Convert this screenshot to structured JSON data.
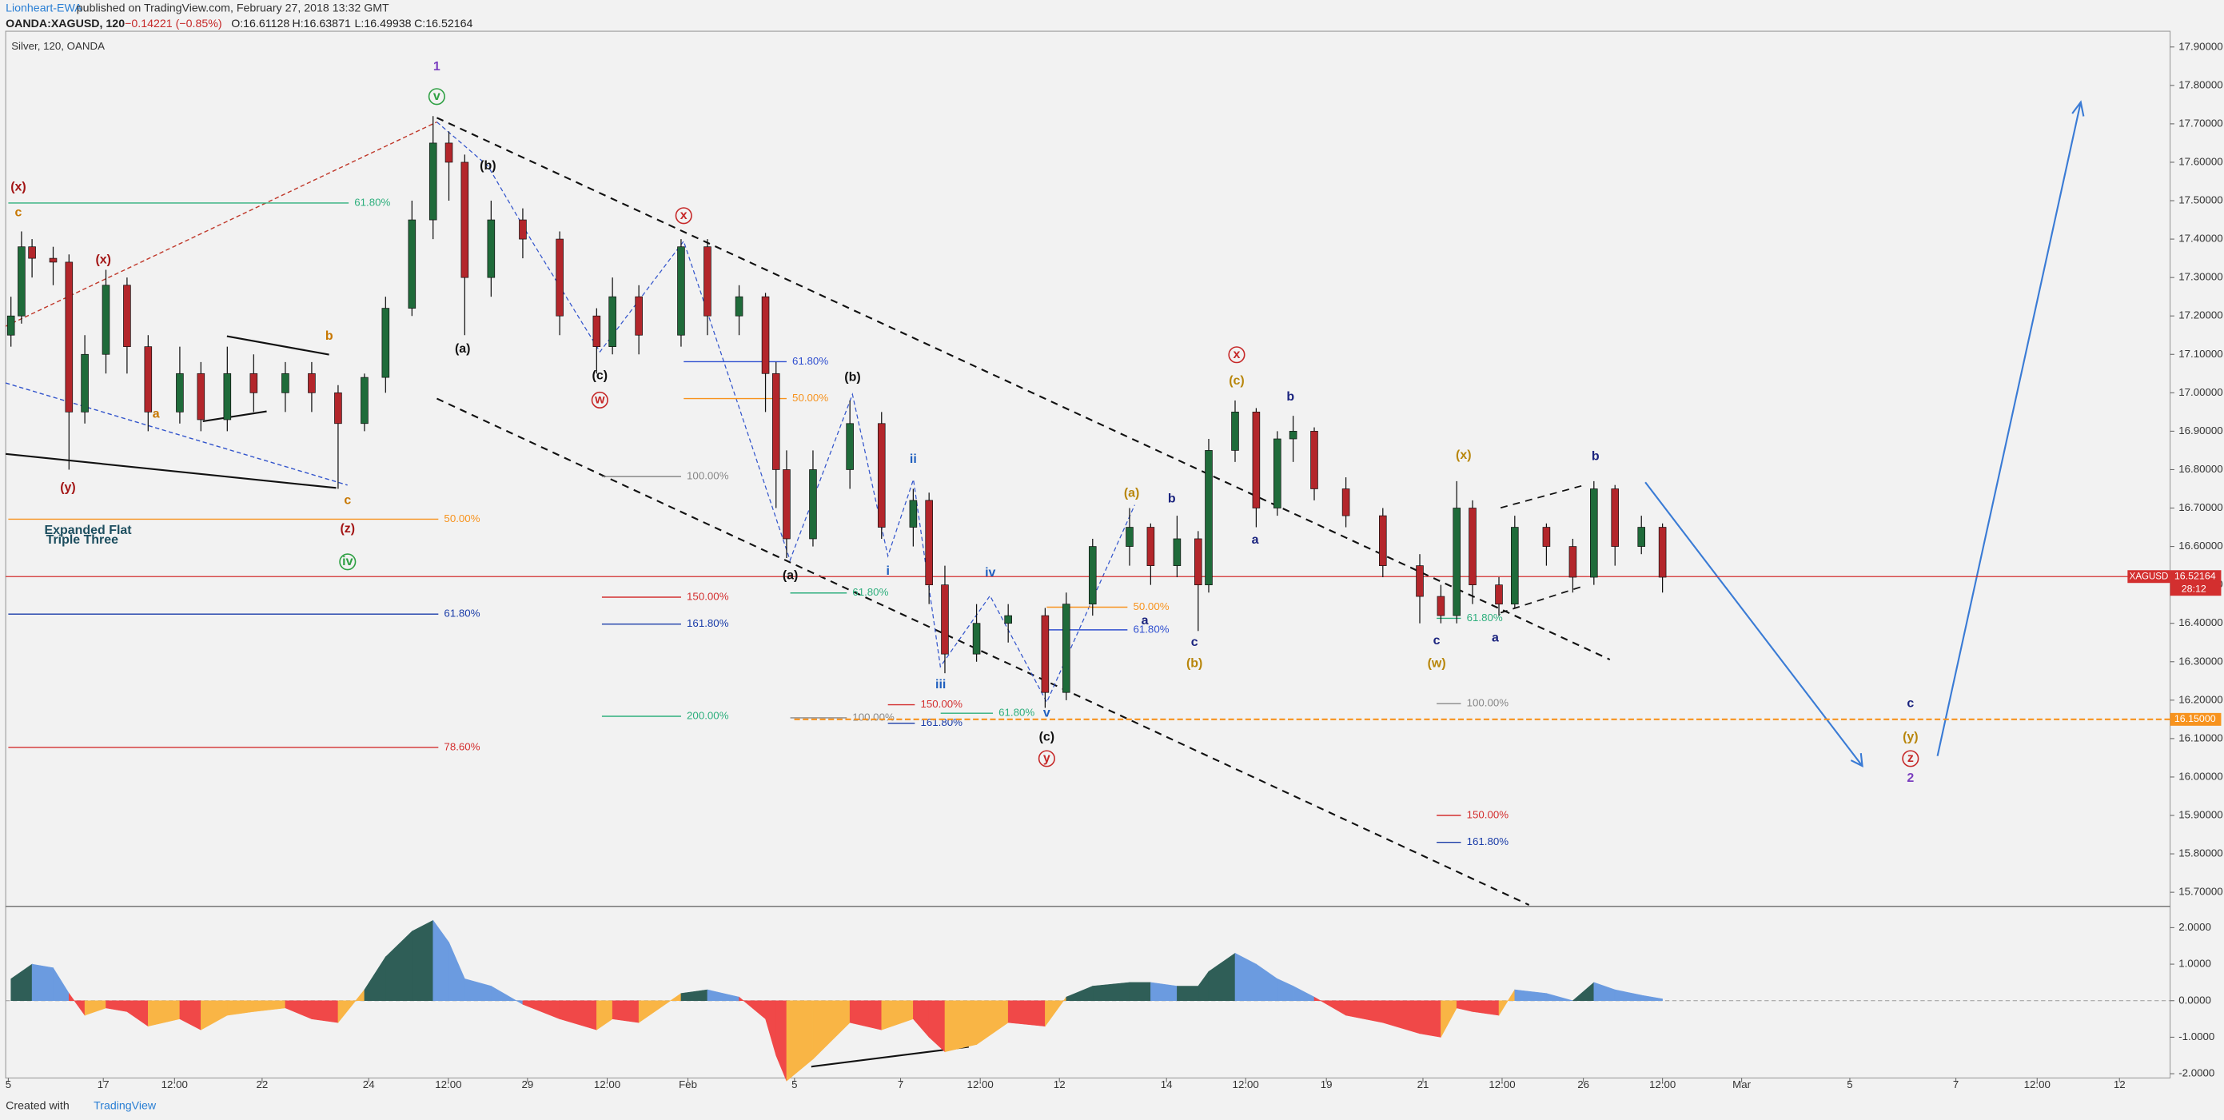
{
  "header": {
    "author": "Lionheart-EWA",
    "published": "published on TradingView.com, February 27, 2018 13:32 GMT",
    "symbol": "OANDA:XAGUSD, 120",
    "change": "−0.14221 (−0.85%)",
    "open": "O:16.61128",
    "high": "H:16.63871",
    "low": "L:16.49938",
    "close": "C:16.52164"
  },
  "chart_data": {
    "type": "candlestick",
    "legend": "Silver, 120, OANDA",
    "x": [
      0.1,
      0.3,
      0.5,
      0.9,
      1.2,
      1.5,
      1.9,
      2.3,
      2.7,
      3.3,
      3.7,
      4.2,
      4.7,
      5.3,
      5.8,
      6.3,
      6.8,
      7.2,
      7.7,
      8.1,
      8.4,
      8.7,
      9.2,
      9.8,
      10.5,
      11.2,
      11.5,
      12.0,
      12.8,
      13.3,
      13.9,
      14.4,
      14.6,
      14.8,
      15.3,
      16.0,
      16.6,
      17.2,
      17.5,
      17.8,
      18.4,
      19.0,
      19.7,
      20.1,
      20.6,
      21.3,
      21.7,
      22.2,
      22.6,
      22.8,
      23.3,
      23.7,
      24.1,
      24.4,
      24.8,
      25.4,
      26.1,
      26.8,
      27.2,
      27.5,
      27.8,
      28.3,
      28.6,
      29.2,
      29.7,
      30.1,
      30.5,
      31.0,
      31.4
    ],
    "open": [
      17.15,
      17.2,
      17.38,
      17.35,
      17.34,
      16.95,
      17.1,
      17.28,
      17.12,
      16.95,
      17.05,
      16.93,
      17.05,
      17.0,
      17.05,
      17.0,
      16.92,
      17.04,
      17.22,
      17.45,
      17.65,
      17.6,
      17.3,
      17.45,
      17.4,
      17.2,
      17.12,
      17.25,
      17.15,
      17.38,
      17.2,
      17.25,
      17.05,
      16.8,
      16.62,
      16.8,
      16.92,
      16.65,
      16.72,
      16.5,
      16.32,
      16.4,
      16.42,
      16.22,
      16.45,
      16.6,
      16.65,
      16.55,
      16.62,
      16.5,
      16.85,
      16.95,
      16.7,
      16.88,
      16.9,
      16.75,
      16.68,
      16.55,
      16.47,
      16.42,
      16.7,
      16.5,
      16.45,
      16.65,
      16.6,
      16.52,
      16.75,
      16.6,
      16.65
    ],
    "high": [
      17.25,
      17.42,
      17.4,
      17.38,
      17.36,
      17.15,
      17.32,
      17.3,
      17.15,
      17.12,
      17.08,
      17.12,
      17.1,
      17.08,
      17.08,
      17.02,
      17.05,
      17.25,
      17.5,
      17.72,
      17.68,
      17.62,
      17.5,
      17.48,
      17.42,
      17.22,
      17.3,
      17.28,
      17.4,
      17.4,
      17.28,
      17.26,
      17.08,
      16.85,
      16.85,
      16.98,
      16.95,
      16.75,
      16.74,
      16.55,
      16.45,
      16.45,
      16.44,
      16.48,
      16.62,
      16.7,
      16.66,
      16.68,
      16.64,
      16.88,
      16.98,
      16.96,
      16.9,
      16.94,
      16.91,
      16.78,
      16.7,
      16.58,
      16.5,
      16.77,
      16.72,
      16.52,
      16.68,
      16.66,
      16.62,
      16.77,
      16.76,
      16.68,
      16.66
    ],
    "low": [
      17.12,
      17.18,
      17.3,
      17.28,
      16.8,
      16.92,
      17.05,
      17.05,
      16.9,
      16.92,
      16.9,
      16.9,
      16.95,
      16.95,
      16.95,
      16.75,
      16.9,
      17.0,
      17.2,
      17.4,
      17.5,
      17.15,
      17.25,
      17.35,
      17.15,
      17.05,
      17.1,
      17.1,
      17.12,
      17.15,
      17.15,
      16.95,
      16.7,
      16.57,
      16.6,
      16.75,
      16.62,
      16.6,
      16.45,
      16.27,
      16.3,
      16.35,
      16.18,
      16.2,
      16.42,
      16.55,
      16.5,
      16.52,
      16.38,
      16.48,
      16.82,
      16.65,
      16.68,
      16.82,
      16.72,
      16.65,
      16.52,
      16.4,
      16.4,
      16.4,
      16.45,
      16.42,
      16.44,
      16.55,
      16.48,
      16.5,
      16.55,
      16.58,
      16.48
    ],
    "close": [
      17.2,
      17.38,
      17.35,
      17.34,
      16.95,
      17.1,
      17.28,
      17.12,
      16.95,
      17.05,
      16.93,
      17.05,
      17.0,
      17.05,
      17.0,
      16.92,
      17.04,
      17.22,
      17.45,
      17.65,
      17.6,
      17.3,
      17.45,
      17.4,
      17.2,
      17.12,
      17.25,
      17.15,
      17.38,
      17.2,
      17.25,
      17.05,
      16.8,
      16.62,
      16.8,
      16.92,
      16.65,
      16.72,
      16.5,
      16.32,
      16.4,
      16.42,
      16.22,
      16.45,
      16.6,
      16.65,
      16.55,
      16.62,
      16.5,
      16.85,
      16.95,
      16.7,
      16.88,
      16.9,
      16.75,
      16.68,
      16.55,
      16.47,
      16.42,
      16.7,
      16.5,
      16.45,
      16.65,
      16.6,
      16.52,
      16.75,
      16.6,
      16.65,
      16.52
    ],
    "up_color": "#1f6b3a",
    "down_color": "#b3262b",
    "xlim": [
      0,
      41.02
    ],
    "xticks": [
      {
        "value": 0.05,
        "label": "5"
      },
      {
        "value": 1.85,
        "label": "17"
      },
      {
        "value": 3.2,
        "label": "12:00"
      },
      {
        "value": 4.86,
        "label": "22"
      },
      {
        "value": 6.88,
        "label": "24"
      },
      {
        "value": 8.39,
        "label": "12:00"
      },
      {
        "value": 9.89,
        "label": "29"
      },
      {
        "value": 11.4,
        "label": "12:00"
      },
      {
        "value": 12.93,
        "label": "Feb"
      },
      {
        "value": 14.95,
        "label": "5"
      },
      {
        "value": 16.96,
        "label": "7"
      },
      {
        "value": 18.47,
        "label": "12:00"
      },
      {
        "value": 19.97,
        "label": "12"
      },
      {
        "value": 22.0,
        "label": "14"
      },
      {
        "value": 23.5,
        "label": "12:00"
      },
      {
        "value": 25.03,
        "label": "19"
      },
      {
        "value": 26.86,
        "label": "21"
      },
      {
        "value": 28.36,
        "label": "12:00"
      },
      {
        "value": 29.9,
        "label": "26"
      },
      {
        "value": 31.4,
        "label": "12:00"
      },
      {
        "value": 32.9,
        "label": "Mar"
      },
      {
        "value": 34.95,
        "label": "5"
      },
      {
        "value": 36.96,
        "label": "7"
      },
      {
        "value": 38.5,
        "label": "12:00"
      },
      {
        "value": 40.06,
        "label": "12"
      }
    ],
    "ylim": [
      15.667,
      17.941
    ],
    "yticks": [
      {
        "value": 17.9,
        "label": "17.90000"
      },
      {
        "value": 17.8,
        "label": "17.80000"
      },
      {
        "value": 17.7,
        "label": "17.70000"
      },
      {
        "value": 17.6,
        "label": "17.60000"
      },
      {
        "value": 17.5,
        "label": "17.50000"
      },
      {
        "value": 17.4,
        "label": "17.40000"
      },
      {
        "value": 17.3,
        "label": "17.30000"
      },
      {
        "value": 17.2,
        "label": "17.20000"
      },
      {
        "value": 17.1,
        "label": "17.10000"
      },
      {
        "value": 17.0,
        "label": "17.00000"
      },
      {
        "value": 16.9,
        "label": "16.90000"
      },
      {
        "value": 16.8,
        "label": "16.80000"
      },
      {
        "value": 16.7,
        "label": "16.70000"
      },
      {
        "value": 16.6,
        "label": "16.60000"
      },
      {
        "value": 16.5,
        "label": "16.50000"
      },
      {
        "value": 16.4,
        "label": "16.40000"
      },
      {
        "value": 16.3,
        "label": "16.30000"
      },
      {
        "value": 16.2,
        "label": "16.20000"
      },
      {
        "value": 16.1,
        "label": "16.10000"
      },
      {
        "value": 16.0,
        "label": "16.00000"
      },
      {
        "value": 15.9,
        "label": "15.90000"
      },
      {
        "value": 15.8,
        "label": "15.80000"
      },
      {
        "value": 15.7,
        "label": "15.70000"
      }
    ],
    "symbol": "XAGUSD",
    "countdown": "28:12",
    "last_price": {
      "value": 16.52164,
      "label": "16.52164",
      "color": "#d32f2f"
    },
    "target_level": {
      "value": 16.15,
      "label": "16.15000",
      "color": "#f7931e"
    },
    "annotations": [
      {
        "text": "1",
        "x": 8.17,
        "y": 17.848,
        "color": "#7b3fbf",
        "circle": false
      },
      {
        "text": "v",
        "x": 8.17,
        "y": 17.771,
        "color": "#2ea043",
        "circle": true
      },
      {
        "text": "(x)",
        "x": 0.24,
        "y": 17.535,
        "color": "#a31515",
        "circle": false
      },
      {
        "text": "c",
        "x": 0.24,
        "y": 17.468,
        "color": "#c77700",
        "circle": false
      },
      {
        "text": "(x)",
        "x": 1.85,
        "y": 17.346,
        "color": "#a31515",
        "circle": false
      },
      {
        "text": "(y)",
        "x": 1.18,
        "y": 16.752,
        "color": "#a31515",
        "circle": false
      },
      {
        "text": "a",
        "x": 2.85,
        "y": 16.944,
        "color": "#c77700",
        "circle": false
      },
      {
        "text": "b",
        "x": 6.13,
        "y": 17.147,
        "color": "#c77700",
        "circle": false
      },
      {
        "text": "c",
        "x": 6.48,
        "y": 16.719,
        "color": "#c77700",
        "circle": false
      },
      {
        "text": "(z)",
        "x": 6.48,
        "y": 16.645,
        "color": "#a31515",
        "circle": false
      },
      {
        "text": "iv",
        "x": 6.48,
        "y": 16.56,
        "color": "#2ea043",
        "circle": true
      },
      {
        "text": "(b)",
        "x": 9.14,
        "y": 17.59,
        "color": "#111111",
        "circle": false
      },
      {
        "text": "(a)",
        "x": 8.66,
        "y": 17.114,
        "color": "#111111",
        "circle": false
      },
      {
        "text": "(c)",
        "x": 11.26,
        "y": 17.044,
        "color": "#111111",
        "circle": false
      },
      {
        "text": "w",
        "x": 11.26,
        "y": 16.981,
        "color": "#c62828",
        "circle": true
      },
      {
        "text": "x",
        "x": 12.85,
        "y": 17.461,
        "color": "#c62828",
        "circle": true
      },
      {
        "text": "(b)",
        "x": 16.05,
        "y": 17.04,
        "color": "#111111",
        "circle": false
      },
      {
        "text": "(a)",
        "x": 14.87,
        "y": 16.524,
        "color": "#111111",
        "circle": false
      },
      {
        "text": "ii",
        "x": 17.2,
        "y": 16.826,
        "color": "#1f5fbf",
        "circle": false
      },
      {
        "text": "i",
        "x": 16.72,
        "y": 16.535,
        "color": "#1f5fbf",
        "circle": false
      },
      {
        "text": "iii",
        "x": 17.72,
        "y": 16.24,
        "color": "#1f5fbf",
        "circle": false
      },
      {
        "text": "iv",
        "x": 18.66,
        "y": 16.531,
        "color": "#1f5fbf",
        "circle": false
      },
      {
        "text": "v",
        "x": 19.73,
        "y": 16.166,
        "color": "#1f5fbf",
        "circle": false
      },
      {
        "text": "(c)",
        "x": 19.73,
        "y": 16.103,
        "color": "#111111",
        "circle": false
      },
      {
        "text": "y",
        "x": 19.73,
        "y": 16.048,
        "color": "#c62828",
        "circle": true
      },
      {
        "text": "(a)",
        "x": 21.34,
        "y": 16.738,
        "color": "#b8860b",
        "circle": false
      },
      {
        "text": "b",
        "x": 22.1,
        "y": 16.723,
        "color": "#1a237e",
        "circle": false
      },
      {
        "text": "a",
        "x": 21.59,
        "y": 16.406,
        "color": "#1a237e",
        "circle": false
      },
      {
        "text": "c",
        "x": 22.53,
        "y": 16.35,
        "color": "#1a237e",
        "circle": false
      },
      {
        "text": "(b)",
        "x": 22.53,
        "y": 16.295,
        "color": "#b8860b",
        "circle": false
      },
      {
        "text": "x",
        "x": 23.33,
        "y": 17.099,
        "color": "#c62828",
        "circle": true
      },
      {
        "text": "(c)",
        "x": 23.33,
        "y": 17.03,
        "color": "#b8860b",
        "circle": false
      },
      {
        "text": "b",
        "x": 24.35,
        "y": 16.989,
        "color": "#1a237e",
        "circle": false
      },
      {
        "text": "a",
        "x": 23.68,
        "y": 16.616,
        "color": "#1a237e",
        "circle": false
      },
      {
        "text": "(x)",
        "x": 27.63,
        "y": 16.837,
        "color": "#b8860b",
        "circle": false
      },
      {
        "text": "c",
        "x": 27.12,
        "y": 16.354,
        "color": "#1a237e",
        "circle": false
      },
      {
        "text": "(w)",
        "x": 27.12,
        "y": 16.295,
        "color": "#b8860b",
        "circle": false
      },
      {
        "text": "a",
        "x": 28.23,
        "y": 16.361,
        "color": "#1a237e",
        "circle": false
      },
      {
        "text": "b",
        "x": 30.13,
        "y": 16.834,
        "color": "#1a237e",
        "circle": false
      },
      {
        "text": "c",
        "x": 36.1,
        "y": 16.191,
        "color": "#1a237e",
        "circle": false
      },
      {
        "text": "(y)",
        "x": 36.1,
        "y": 16.103,
        "color": "#b8860b",
        "circle": false
      },
      {
        "text": "z",
        "x": 36.1,
        "y": 16.048,
        "color": "#c62828",
        "circle": true
      },
      {
        "text": "2",
        "x": 36.1,
        "y": 15.996,
        "color": "#7b3fbf",
        "circle": false
      },
      {
        "text": "Expanded Flat",
        "x": 1.56,
        "y": 16.641,
        "color": "#1d4e5f",
        "circle": false
      },
      {
        "text": "Triple Three",
        "x": 1.45,
        "y": 16.616,
        "color": "#1d4e5f",
        "circle": false
      }
    ],
    "fib_levels": [
      {
        "label": "61.80%",
        "y": 17.494,
        "x": [
          0.05,
          6.5
        ],
        "color": "#2eaf7d"
      },
      {
        "label": "50.00%",
        "y": 16.671,
        "x": [
          0.05,
          8.2
        ],
        "color": "#f7931e"
      },
      {
        "label": "61.80%",
        "y": 16.424,
        "x": [
          0.05,
          8.2
        ],
        "color": "#1a3ca8"
      },
      {
        "label": "78.60%",
        "y": 16.077,
        "x": [
          0.05,
          8.2
        ],
        "color": "#d32f2f"
      },
      {
        "label": "61.80%",
        "y": 17.081,
        "x": [
          12.85,
          14.8
        ],
        "color": "#2f4fd0"
      },
      {
        "label": "50.00%",
        "y": 16.985,
        "x": [
          12.85,
          14.8
        ],
        "color": "#f7931e"
      },
      {
        "label": "100.00%",
        "y": 16.782,
        "x": [
          11.3,
          12.8
        ],
        "color": "#888888"
      },
      {
        "label": "150.00%",
        "y": 16.468,
        "x": [
          11.3,
          12.8
        ],
        "color": "#d32f2f"
      },
      {
        "label": "161.80%",
        "y": 16.398,
        "x": [
          11.3,
          12.8
        ],
        "color": "#1a3ca8"
      },
      {
        "label": "200.00%",
        "y": 16.158,
        "x": [
          11.3,
          12.8
        ],
        "color": "#2eaf7d"
      },
      {
        "label": "61.80%",
        "y": 16.479,
        "x": [
          14.87,
          15.94
        ],
        "color": "#2eaf7d"
      },
      {
        "label": "100.00%",
        "y": 16.154,
        "x": [
          14.87,
          15.94
        ],
        "color": "#888888"
      },
      {
        "label": "150.00%",
        "y": 16.188,
        "x": [
          16.72,
          17.23
        ],
        "color": "#d32f2f"
      },
      {
        "label": "161.80%",
        "y": 16.14,
        "x": [
          16.72,
          17.23
        ],
        "color": "#1a3ca8"
      },
      {
        "label": "61.80%",
        "y": 16.166,
        "x": [
          17.72,
          18.71
        ],
        "color": "#2eaf7d"
      },
      {
        "label": "50.00%",
        "y": 16.442,
        "x": [
          19.73,
          21.26
        ],
        "color": "#f7931e"
      },
      {
        "label": "61.80%",
        "y": 16.383,
        "x": [
          19.73,
          21.26
        ],
        "color": "#2f4fd0"
      },
      {
        "label": "61.80%",
        "y": 16.413,
        "x": [
          27.12,
          27.58
        ],
        "color": "#2eaf7d"
      },
      {
        "label": "100.00%",
        "y": 16.191,
        "x": [
          27.12,
          27.58
        ],
        "color": "#888888"
      },
      {
        "label": "150.00%",
        "y": 15.9,
        "x": [
          27.12,
          27.58
        ],
        "color": "#d32f2f"
      },
      {
        "label": "161.80%",
        "y": 15.83,
        "x": [
          27.12,
          27.58
        ],
        "color": "#1a3ca8"
      }
    ],
    "oscillator": {
      "values": [
        0.6,
        0.8,
        1.0,
        0.9,
        0.2,
        -0.4,
        -0.2,
        -0.3,
        -0.7,
        -0.5,
        -0.8,
        -0.4,
        -0.3,
        -0.2,
        -0.5,
        -0.6,
        0.3,
        1.2,
        1.9,
        2.2,
        1.6,
        0.6,
        0.4,
        -0.1,
        -0.5,
        -0.8,
        -0.5,
        -0.6,
        0.2,
        0.3,
        0.1,
        -0.5,
        -1.5,
        -2.2,
        -1.6,
        -0.6,
        -0.8,
        -0.5,
        -1.0,
        -1.4,
        -1.2,
        -0.6,
        -0.7,
        0.1,
        0.4,
        0.5,
        0.5,
        0.4,
        0.4,
        0.8,
        1.3,
        1.0,
        0.6,
        0.4,
        0.1,
        -0.4,
        -0.6,
        -0.9,
        -1.0,
        -0.2,
        -0.3,
        -0.4,
        0.3,
        0.2,
        0.0,
        0.5,
        0.3,
        0.15,
        0.05
      ],
      "ylim": [
        -2.117,
        2.544
      ],
      "yticks": [
        {
          "value": 2,
          "label": "2.0000"
        },
        {
          "value": 1,
          "label": "1.0000"
        },
        {
          "value": 0,
          "label": "0.0000"
        },
        {
          "value": -1,
          "label": "-1.0000"
        },
        {
          "value": -2,
          "label": "-2.0000"
        }
      ],
      "colors": {
        "positive_rising": "#2f5e57",
        "positive_falling": "#6b9be0",
        "negative_falling": "#f04848",
        "negative_rising": "#f9b545"
      }
    }
  },
  "footer": {
    "created": "Created with",
    "brand": "TradingView"
  }
}
